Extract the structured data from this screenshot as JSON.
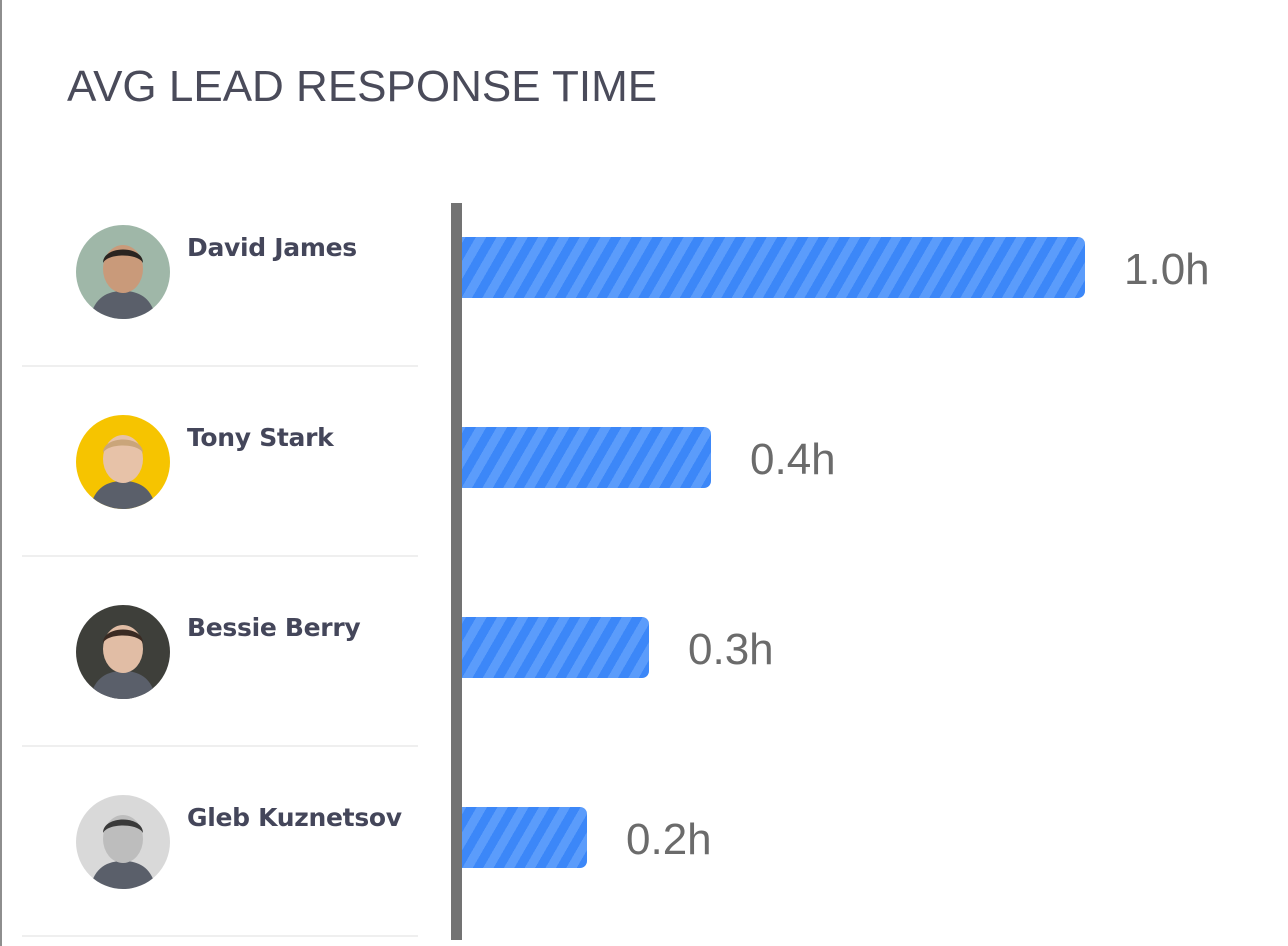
{
  "chart_data": {
    "type": "bar",
    "orientation": "horizontal",
    "title": "AVG LEAD RESPONSE TIME",
    "categories": [
      "David James",
      "Tony Stark",
      "Bessie Berry",
      "Gleb Kuznetsov"
    ],
    "values": [
      1.0,
      0.4,
      0.3,
      0.2
    ],
    "value_labels": [
      "1.0h",
      "0.4h",
      "0.3h",
      "0.2h"
    ],
    "unit": "h",
    "xlim": [
      0,
      1.0
    ],
    "grid": false,
    "legend": "none",
    "bar_color": "#3c87f8",
    "bar_stripe_color": "#5b9cfb"
  },
  "people": [
    {
      "name": "David James",
      "avatar": "photo-avatar",
      "avatar_bg": "#9fb7a8",
      "skin": "#c99a7a",
      "hair": "#2a2420"
    },
    {
      "name": "Tony Stark",
      "avatar": "photo-avatar",
      "avatar_bg": "#f6c400",
      "skin": "#e7c2a8",
      "hair": "#caa57a"
    },
    {
      "name": "Bessie Berry",
      "avatar": "photo-avatar",
      "avatar_bg": "#3e3f3a",
      "skin": "#e1bda5",
      "hair": "#3a2a22"
    },
    {
      "name": "Gleb Kuznetsov",
      "avatar": "photo-avatar",
      "avatar_bg": "#d9d9d9",
      "skin": "#bdbdbd",
      "hair": "#3a3a3a"
    }
  ]
}
